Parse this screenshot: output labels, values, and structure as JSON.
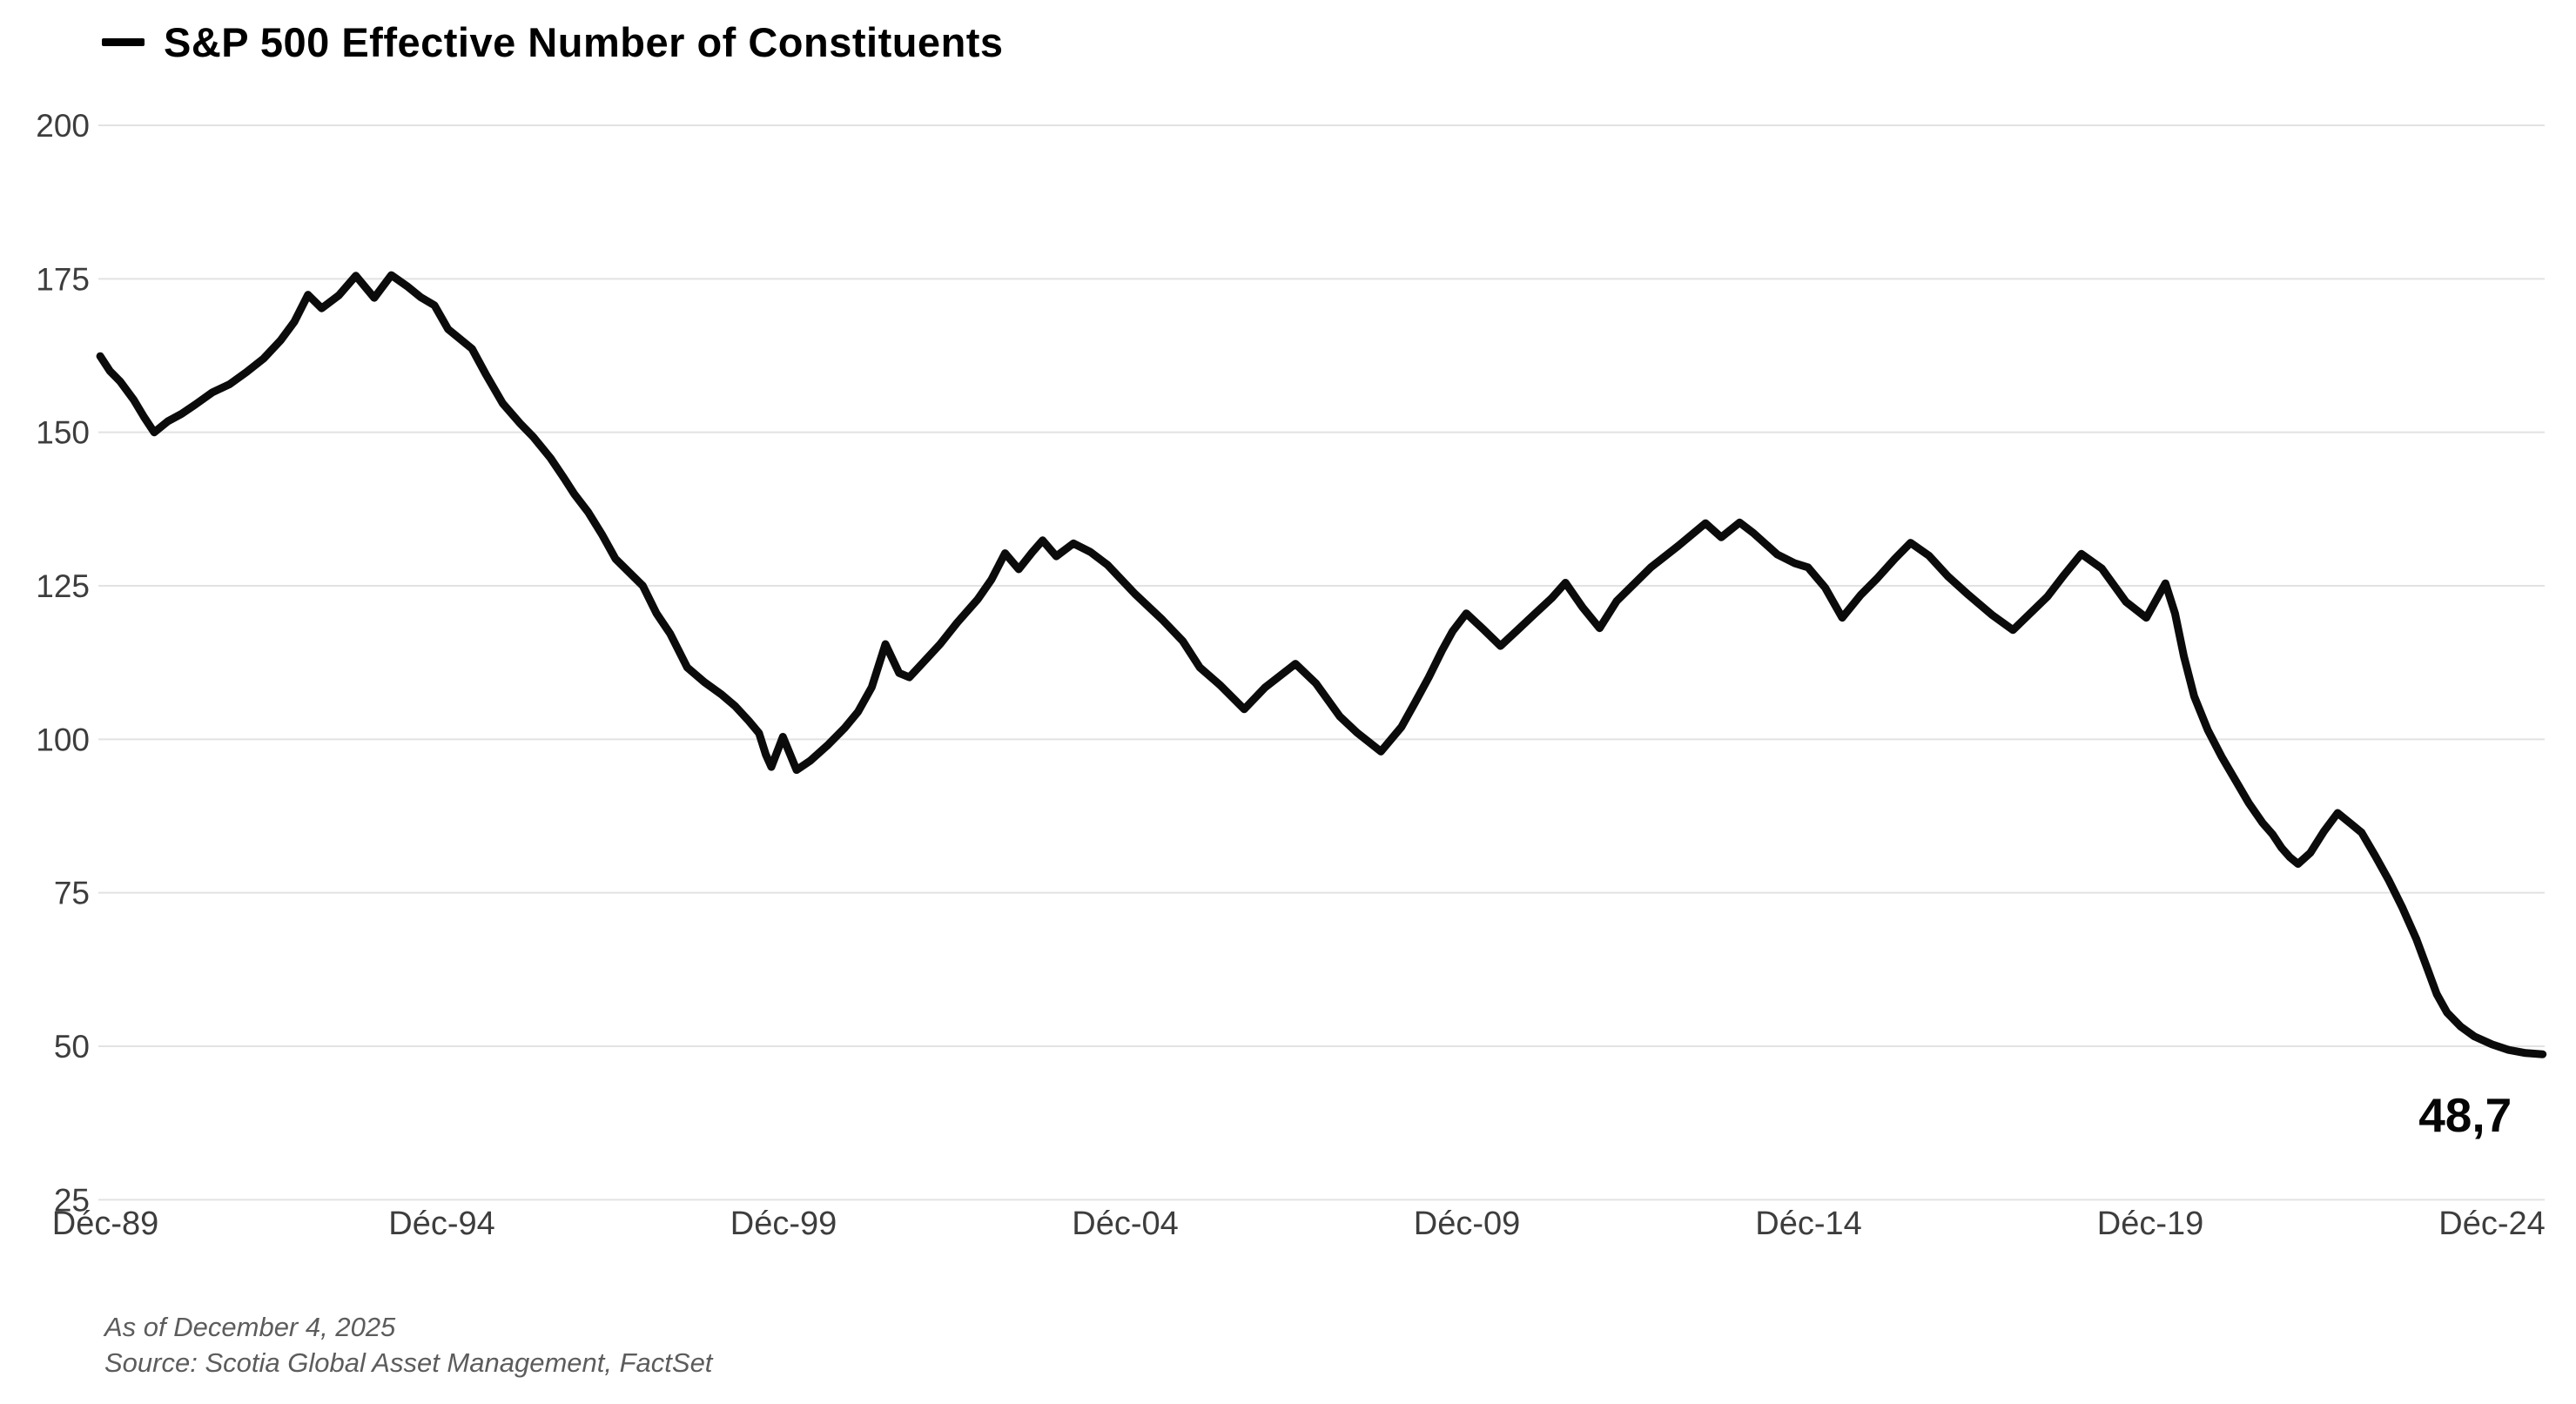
{
  "title": {
    "legend_marker": "—",
    "text": "S&P 500 Effective Number of Constituents"
  },
  "annotation": {
    "text": "48,7"
  },
  "footer": {
    "as_of": "As of December 4, 2025",
    "source": "Source: Scotia Global Asset Management, FactSet"
  },
  "chart_data": {
    "type": "line",
    "title": "S&P 500 Effective Number of Constituents",
    "legend_position": "top-left",
    "grid": true,
    "line_color": "#0b0b0b",
    "grid_color": "#e2e2e2",
    "label_color": "#3d3d3d",
    "y_axis": {
      "lim": [
        25,
        200
      ],
      "ticks": [
        200,
        175,
        150,
        125,
        100,
        75,
        50,
        25
      ]
    },
    "x_axis": {
      "lim": [
        1989.9,
        2025.75
      ],
      "ticks": [
        {
          "pos": 1989.9583,
          "label": "Déc-89"
        },
        {
          "pos": 1994.9583,
          "label": "Déc-94"
        },
        {
          "pos": 1999.9583,
          "label": "Déc-99"
        },
        {
          "pos": 2004.9583,
          "label": "Déc-04"
        },
        {
          "pos": 2009.9583,
          "label": "Déc-09"
        },
        {
          "pos": 2014.9583,
          "label": "Déc-14"
        },
        {
          "pos": 2019.9583,
          "label": "Déc-19"
        },
        {
          "pos": 2024.9583,
          "label": "Déc-24"
        }
      ]
    },
    "series": [
      {
        "name": "S&P 500 Effective Number of Constituents",
        "last_value_label": "48,7",
        "points": [
          [
            1989.96,
            162.4
          ],
          [
            1990.1,
            160.0
          ],
          [
            1990.25,
            158.3
          ],
          [
            1990.45,
            155.3
          ],
          [
            1990.6,
            152.5
          ],
          [
            1990.75,
            150.0
          ],
          [
            1990.95,
            151.8
          ],
          [
            1991.15,
            153.0
          ],
          [
            1991.35,
            154.5
          ],
          [
            1991.6,
            156.5
          ],
          [
            1991.85,
            157.8
          ],
          [
            1992.1,
            159.8
          ],
          [
            1992.35,
            162.0
          ],
          [
            1992.6,
            165.0
          ],
          [
            1992.8,
            168.0
          ],
          [
            1993.0,
            172.4
          ],
          [
            1993.2,
            170.2
          ],
          [
            1993.45,
            172.3
          ],
          [
            1993.7,
            175.5
          ],
          [
            1993.97,
            171.9
          ],
          [
            1994.22,
            175.6
          ],
          [
            1994.45,
            173.8
          ],
          [
            1994.65,
            172.0
          ],
          [
            1994.85,
            170.7
          ],
          [
            1995.05,
            166.8
          ],
          [
            1995.4,
            163.6
          ],
          [
            1995.6,
            159.5
          ],
          [
            1995.85,
            154.7
          ],
          [
            1996.1,
            151.5
          ],
          [
            1996.3,
            149.2
          ],
          [
            1996.55,
            145.8
          ],
          [
            1996.75,
            142.5
          ],
          [
            1996.9,
            139.9
          ],
          [
            1997.1,
            137.0
          ],
          [
            1997.3,
            133.4
          ],
          [
            1997.5,
            129.4
          ],
          [
            1997.7,
            127.2
          ],
          [
            1997.9,
            125.0
          ],
          [
            1998.1,
            120.5
          ],
          [
            1998.3,
            117.2
          ],
          [
            1998.55,
            111.7
          ],
          [
            1998.8,
            109.3
          ],
          [
            1999.05,
            107.3
          ],
          [
            1999.25,
            105.4
          ],
          [
            1999.45,
            103.0
          ],
          [
            1999.6,
            101.0
          ],
          [
            1999.7,
            97.5
          ],
          [
            1999.78,
            95.5
          ],
          [
            1999.95,
            100.4
          ],
          [
            2000.15,
            95.0
          ],
          [
            2000.35,
            96.5
          ],
          [
            2000.6,
            99.0
          ],
          [
            2000.85,
            101.8
          ],
          [
            2001.05,
            104.5
          ],
          [
            2001.25,
            108.5
          ],
          [
            2001.45,
            115.5
          ],
          [
            2001.65,
            110.8
          ],
          [
            2001.8,
            110.1
          ],
          [
            2002.0,
            112.5
          ],
          [
            2002.25,
            115.5
          ],
          [
            2002.5,
            119.0
          ],
          [
            2002.8,
            122.8
          ],
          [
            2003.0,
            126.0
          ],
          [
            2003.2,
            130.3
          ],
          [
            2003.4,
            127.7
          ],
          [
            2003.6,
            130.5
          ],
          [
            2003.75,
            132.4
          ],
          [
            2003.95,
            129.8
          ],
          [
            2004.2,
            131.9
          ],
          [
            2004.45,
            130.5
          ],
          [
            2004.7,
            128.4
          ],
          [
            2005.1,
            123.7
          ],
          [
            2005.5,
            119.5
          ],
          [
            2005.8,
            116.0
          ],
          [
            2006.05,
            111.7
          ],
          [
            2006.35,
            108.8
          ],
          [
            2006.7,
            104.9
          ],
          [
            2007.0,
            108.4
          ],
          [
            2007.45,
            112.3
          ],
          [
            2007.75,
            109.1
          ],
          [
            2008.1,
            103.7
          ],
          [
            2008.35,
            101.1
          ],
          [
            2008.7,
            98.0
          ],
          [
            2009.0,
            102.0
          ],
          [
            2009.2,
            106.0
          ],
          [
            2009.4,
            110.1
          ],
          [
            2009.6,
            114.6
          ],
          [
            2009.75,
            117.6
          ],
          [
            2009.95,
            120.5
          ],
          [
            2010.2,
            117.9
          ],
          [
            2010.45,
            115.2
          ],
          [
            2010.7,
            117.8
          ],
          [
            2010.95,
            120.4
          ],
          [
            2011.2,
            123.0
          ],
          [
            2011.4,
            125.5
          ],
          [
            2011.65,
            121.5
          ],
          [
            2011.9,
            118.1
          ],
          [
            2012.15,
            122.5
          ],
          [
            2012.65,
            128.0
          ],
          [
            2013.05,
            131.5
          ],
          [
            2013.45,
            135.2
          ],
          [
            2013.68,
            132.9
          ],
          [
            2013.95,
            135.3
          ],
          [
            2014.15,
            133.6
          ],
          [
            2014.5,
            130.1
          ],
          [
            2014.75,
            128.7
          ],
          [
            2014.95,
            128.0
          ],
          [
            2015.2,
            124.7
          ],
          [
            2015.45,
            119.8
          ],
          [
            2015.72,
            123.5
          ],
          [
            2015.97,
            126.3
          ],
          [
            2016.22,
            129.4
          ],
          [
            2016.45,
            132.0
          ],
          [
            2016.72,
            129.9
          ],
          [
            2017.0,
            126.5
          ],
          [
            2017.3,
            123.5
          ],
          [
            2017.65,
            120.2
          ],
          [
            2017.95,
            117.8
          ],
          [
            2018.2,
            120.5
          ],
          [
            2018.45,
            123.2
          ],
          [
            2018.7,
            126.8
          ],
          [
            2018.95,
            130.2
          ],
          [
            2019.25,
            127.8
          ],
          [
            2019.6,
            122.4
          ],
          [
            2019.9,
            119.8
          ],
          [
            2020.18,
            125.4
          ],
          [
            2020.32,
            120.5
          ],
          [
            2020.45,
            113.5
          ],
          [
            2020.6,
            107.0
          ],
          [
            2020.8,
            101.5
          ],
          [
            2021.0,
            97.2
          ],
          [
            2021.2,
            93.4
          ],
          [
            2021.4,
            89.6
          ],
          [
            2021.6,
            86.4
          ],
          [
            2021.75,
            84.5
          ],
          [
            2021.88,
            82.3
          ],
          [
            2022.0,
            80.8
          ],
          [
            2022.12,
            79.7
          ],
          [
            2022.3,
            81.5
          ],
          [
            2022.5,
            85.0
          ],
          [
            2022.7,
            88.0
          ],
          [
            2022.9,
            86.2
          ],
          [
            2023.05,
            84.8
          ],
          [
            2023.25,
            81.0
          ],
          [
            2023.45,
            77.0
          ],
          [
            2023.65,
            72.5
          ],
          [
            2023.85,
            67.5
          ],
          [
            2024.0,
            63.0
          ],
          [
            2024.15,
            58.5
          ],
          [
            2024.3,
            55.5
          ],
          [
            2024.5,
            53.2
          ],
          [
            2024.7,
            51.6
          ],
          [
            2024.96,
            50.3
          ],
          [
            2025.2,
            49.4
          ],
          [
            2025.45,
            48.9
          ],
          [
            2025.7,
            48.7
          ]
        ]
      }
    ]
  }
}
